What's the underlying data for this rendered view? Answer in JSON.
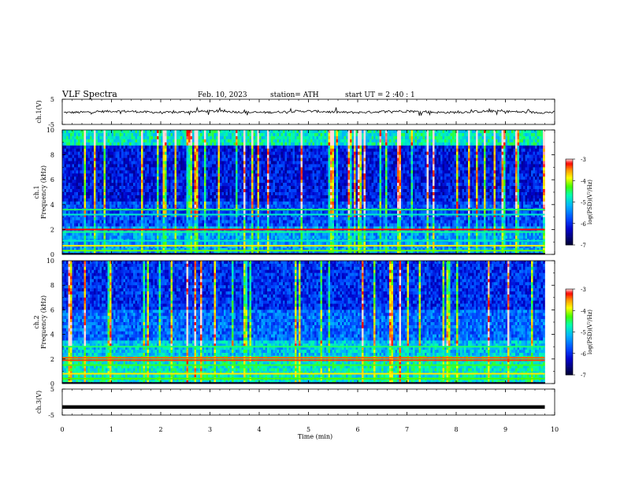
{
  "header": {
    "title": "VLF  Spectra",
    "date": "Feb. 10, 2023",
    "station": "station= ATH",
    "start": "start  UT  =   2  :40 : 1"
  },
  "chart_data": [
    {
      "type": "line",
      "name": "ch1-waveform",
      "ylabel": "ch.1(V)",
      "ylim": [
        -5,
        5
      ],
      "yticks": [
        "5",
        "-5"
      ],
      "xlim": [
        0,
        10
      ],
      "mean_level": 0,
      "color": "#000000"
    },
    {
      "type": "heatmap",
      "name": "ch1-spectrogram",
      "ylabel": [
        "ch.1",
        "Frequency  (kHz)"
      ],
      "ylim": [
        0,
        10
      ],
      "yticks": [
        "0",
        "2",
        "4",
        "6",
        "8",
        "10"
      ],
      "xlim": [
        0,
        9.8
      ],
      "colorbar": {
        "label": "log(PSD)(V²/Hz)",
        "range": [
          -7,
          -3
        ],
        "ticks": [
          "-3",
          "-4",
          "-5",
          "-6",
          "-7"
        ],
        "colors": [
          "#000033",
          "#0000cc",
          "#0044ff",
          "#00b0ff",
          "#00ffb0",
          "#44ff00",
          "#ffff00",
          "#ff9900",
          "#ff0000",
          "#ffffff"
        ]
      }
    },
    {
      "type": "heatmap",
      "name": "ch2-spectrogram",
      "ylabel": [
        "ch.2",
        "Frequency  (kHz)"
      ],
      "ylim": [
        0,
        10
      ],
      "yticks": [
        "0",
        "2",
        "4",
        "6",
        "8",
        "10"
      ],
      "xlim": [
        0,
        9.8
      ],
      "colorbar": {
        "label": "log(PSD)(V²/Hz)",
        "range": [
          -7,
          -3
        ],
        "ticks": [
          "-3",
          "-4",
          "-5",
          "-6",
          "-7"
        ],
        "colors": [
          "#000033",
          "#0000cc",
          "#0044ff",
          "#00b0ff",
          "#00ffb0",
          "#44ff00",
          "#ffff00",
          "#ff9900",
          "#ff0000",
          "#ffffff"
        ]
      }
    },
    {
      "type": "line",
      "name": "ch3-waveform",
      "ylabel": "ch.3(V)",
      "ylim": [
        -5,
        5
      ],
      "yticks": [
        "5",
        "-5"
      ],
      "xlim": [
        0,
        9.8
      ],
      "mean_level": -1.9,
      "color": "#000000"
    }
  ],
  "xaxis": {
    "label": "Time  (min)",
    "range": [
      0,
      10
    ],
    "ticks": [
      "0",
      "1",
      "2",
      "3",
      "4",
      "5",
      "6",
      "7",
      "8",
      "9",
      "10"
    ]
  }
}
